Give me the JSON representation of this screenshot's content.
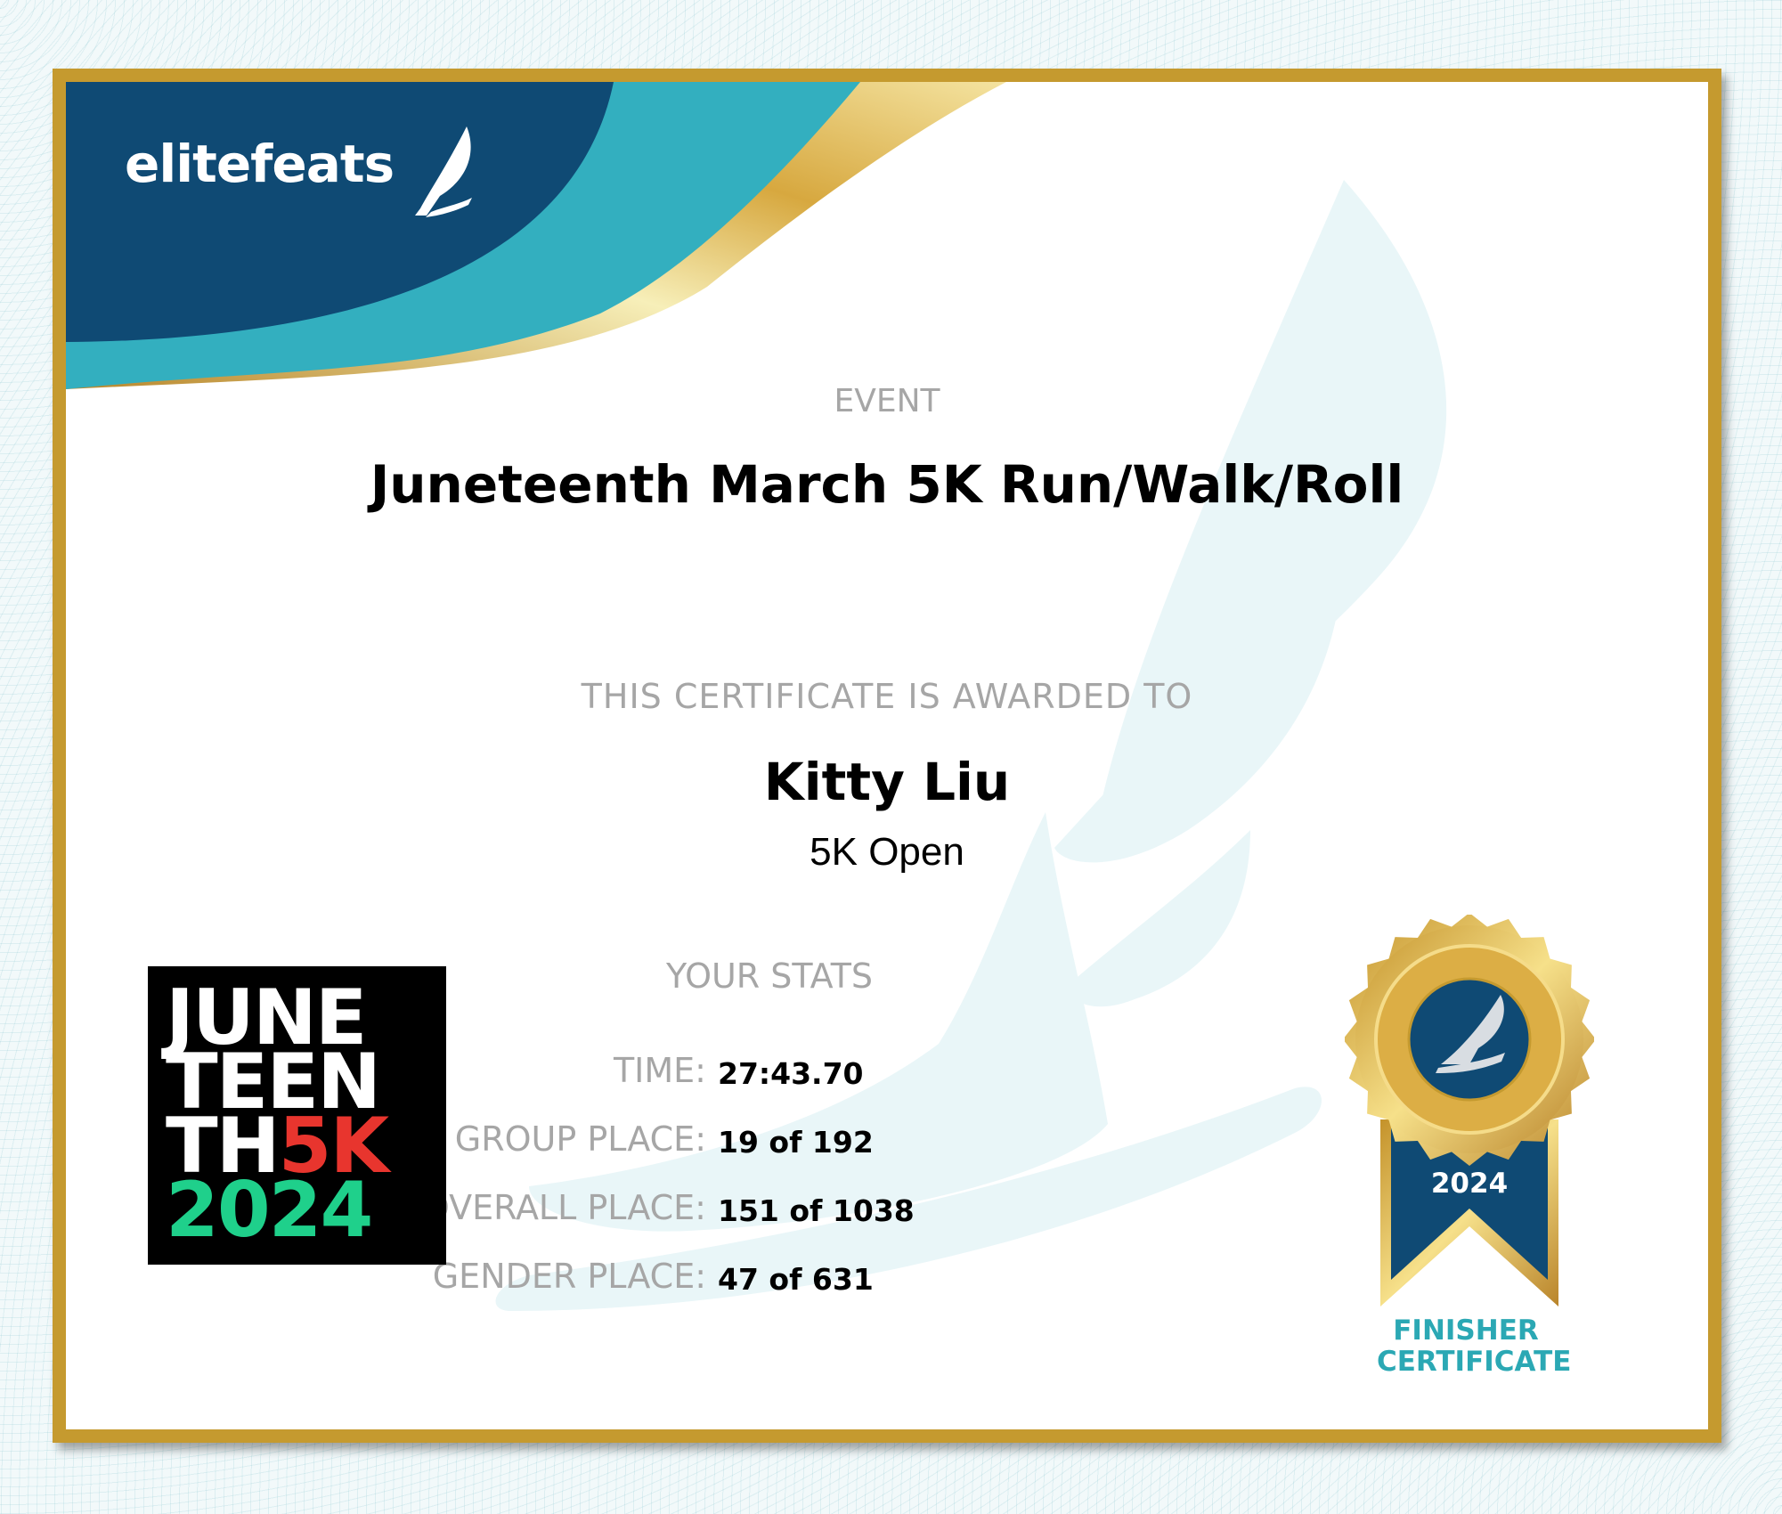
{
  "brand": {
    "name": "elitefeats",
    "navy": "#0f4a74",
    "teal": "#33afbf",
    "gold": "#c59a2f"
  },
  "event": {
    "label": "EVENT",
    "title": "Juneteenth March 5K Run/Walk/Roll"
  },
  "award": {
    "label": "THIS CERTIFICATE IS AWARDED TO",
    "name": "Kitty Liu",
    "division": "5K Open"
  },
  "stats": {
    "title": "YOUR STATS",
    "rows": [
      {
        "label": "TIME:",
        "value": "27:43.70"
      },
      {
        "label": "AGE GROUP PLACE:",
        "value": "19 of 192"
      },
      {
        "label": "OVERALL PLACE:",
        "value": "151 of 1038"
      },
      {
        "label": "GENDER PLACE:",
        "value": "47 of 631"
      }
    ]
  },
  "event_logo": {
    "line1": "JUNE",
    "line2": "TEEN",
    "line3a": "TH",
    "line3b": "5K",
    "line4": "2024"
  },
  "medal": {
    "year": "2024",
    "icon": "winged-foot-icon",
    "caption1": "FINISHER",
    "caption2": "CERTIFICATE"
  }
}
